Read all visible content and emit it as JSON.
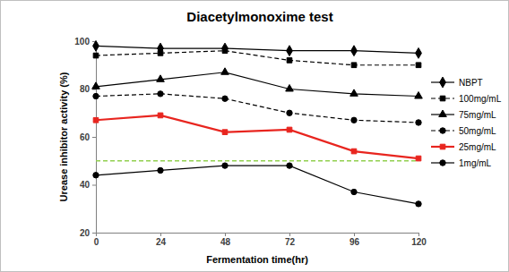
{
  "chart_data": {
    "type": "line",
    "title": "Diacetylmonoxime test",
    "x_label": "Fermentation time(hr)",
    "y_label": "Urease inhibitor activity (%)",
    "x": [
      0,
      24,
      48,
      72,
      96,
      120
    ],
    "xlim": [
      0,
      120
    ],
    "xticks": [
      0,
      24,
      48,
      72,
      96,
      120
    ],
    "ylim": [
      20,
      100
    ],
    "yticks": [
      20,
      40,
      60,
      80,
      100
    ],
    "grid": false,
    "legend": "right",
    "series": [
      {
        "name": "NBPT",
        "color": "#000000",
        "marker": "diamond",
        "line_style": "solid",
        "values": [
          98,
          97,
          97,
          96,
          96,
          95
        ]
      },
      {
        "name": "100mg/mL",
        "color": "#000000",
        "marker": "square",
        "line_style": "dashed",
        "values": [
          94,
          95,
          96,
          92,
          90,
          90
        ]
      },
      {
        "name": "75mg/mL",
        "color": "#000000",
        "marker": "triangle",
        "line_style": "solid",
        "values": [
          81,
          84,
          87,
          80,
          78,
          77
        ]
      },
      {
        "name": "50mg/mL",
        "color": "#000000",
        "marker": "circle",
        "line_style": "dashed",
        "values": [
          77,
          78,
          76,
          70,
          67,
          66
        ]
      },
      {
        "name": "25mg/mL",
        "color": "#e8251f",
        "marker": "square",
        "line_style": "solid",
        "values": [
          67,
          69,
          62,
          63,
          54,
          51
        ]
      },
      {
        "name": "1mg/mL",
        "color": "#000000",
        "marker": "circle",
        "line_style": "solid",
        "values": [
          44,
          46,
          48,
          48,
          37,
          32
        ]
      }
    ],
    "reference_line": {
      "y": 50,
      "color": "#92d050",
      "line_style": "dashed"
    }
  }
}
